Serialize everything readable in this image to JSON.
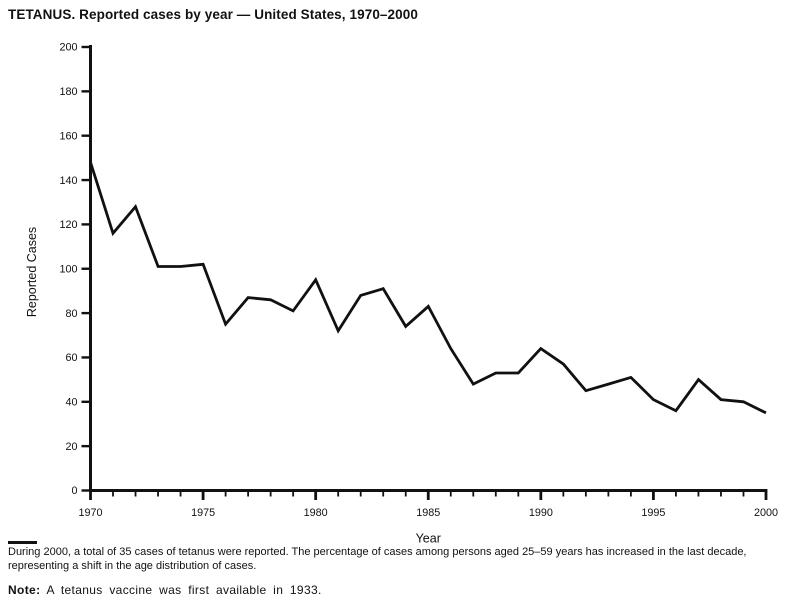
{
  "title": "TETANUS. Reported cases by year — United States, 1970–2000",
  "chart_data": {
    "type": "line",
    "title": "TETANUS. Reported cases by year — United States, 1970–2000",
    "x": [
      1970,
      1971,
      1972,
      1973,
      1974,
      1975,
      1976,
      1977,
      1978,
      1979,
      1980,
      1981,
      1982,
      1983,
      1984,
      1985,
      1986,
      1987,
      1988,
      1989,
      1990,
      1991,
      1992,
      1993,
      1994,
      1995,
      1996,
      1997,
      1998,
      1999,
      2000
    ],
    "series": [
      {
        "name": "Reported cases",
        "values": [
          148,
          116,
          128,
          101,
          101,
          102,
          75,
          87,
          86,
          81,
          95,
          72,
          88,
          91,
          74,
          83,
          64,
          48,
          53,
          53,
          64,
          57,
          45,
          48,
          51,
          41,
          36,
          50,
          41,
          40,
          35
        ]
      }
    ],
    "xlabel": "Year",
    "ylabel": "Reported Cases",
    "ylim": [
      0,
      200
    ],
    "ytick_step": 20,
    "yticks": [
      0,
      20,
      40,
      60,
      80,
      100,
      120,
      140,
      160,
      180,
      200
    ],
    "xticks_labeled": [
      1970,
      1975,
      1980,
      1985,
      1990,
      1995,
      2000
    ],
    "xtick_minor_step": 1,
    "grid": false,
    "legend": "none",
    "line_color": "#111111",
    "axis_color": "#111111"
  },
  "footnote": {
    "lines": {
      "0": "During 2000, a total of 35 cases of tetanus were reported. The percentage of cases among persons aged 25–59 years has increased in the last decade,",
      "1": "representing a shift in the age distribution of cases."
    }
  },
  "note": {
    "label": "Note:",
    "text": " A tetanus vaccine was first available in 1933."
  }
}
